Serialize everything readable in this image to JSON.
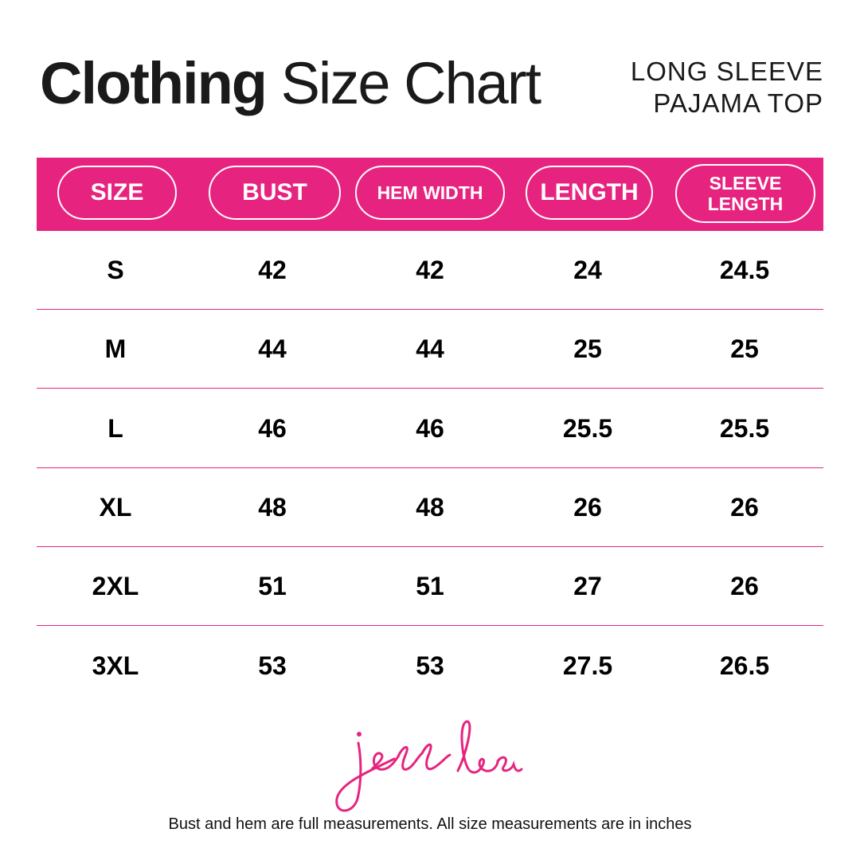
{
  "title": {
    "bold": "Clothing",
    "light": "Size Chart"
  },
  "subtitle": [
    "LONG SLEEVE",
    "PAJAMA TOP"
  ],
  "colors": {
    "accent": "#E6247F",
    "text": "#1a1a1a"
  },
  "table": {
    "headers": [
      "SIZE",
      "BUST",
      "HEM WIDTH",
      "LENGTH",
      "SLEEVE LENGTH"
    ],
    "sleeve_header_lines": [
      "SLEEVE",
      "LENGTH"
    ],
    "rows": [
      [
        "S",
        "42",
        "42",
        "24",
        "24.5"
      ],
      [
        "M",
        "44",
        "44",
        "25",
        "25"
      ],
      [
        "L",
        "46",
        "46",
        "25.5",
        "25.5"
      ],
      [
        "XL",
        "48",
        "48",
        "26",
        "26"
      ],
      [
        "2XL",
        "51",
        "51",
        "27",
        "26"
      ],
      [
        "3XL",
        "53",
        "53",
        "27.5",
        "26.5"
      ]
    ]
  },
  "logo": {
    "text": "jess lea"
  },
  "footer": "Bust and hem are full measurements. All size measurements are in inches"
}
